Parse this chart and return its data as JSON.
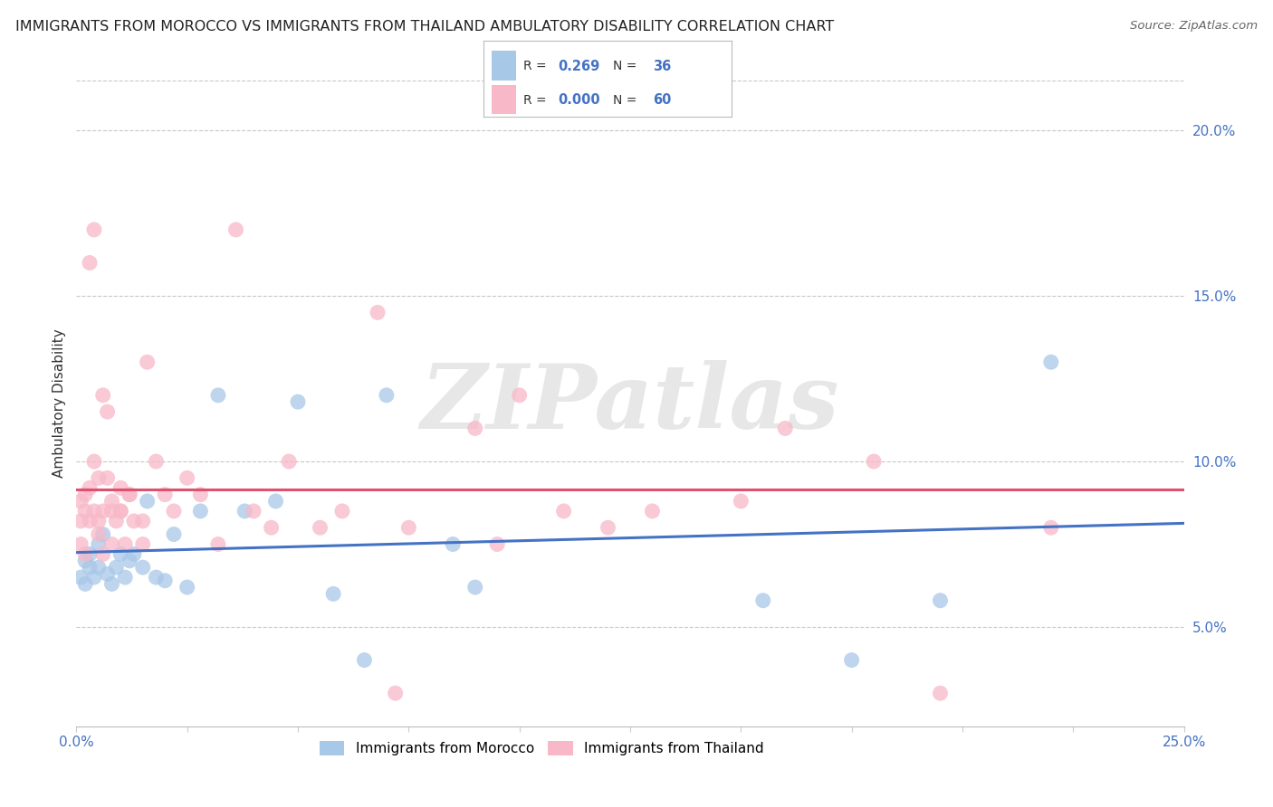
{
  "title": "IMMIGRANTS FROM MOROCCO VS IMMIGRANTS FROM THAILAND AMBULATORY DISABILITY CORRELATION CHART",
  "source": "Source: ZipAtlas.com",
  "ylabel": "Ambulatory Disability",
  "xlim": [
    0.0,
    0.25
  ],
  "ylim": [
    0.02,
    0.215
  ],
  "xtick_positions": [
    0.0,
    0.025,
    0.05,
    0.075,
    0.1,
    0.125,
    0.15,
    0.175,
    0.2,
    0.225,
    0.25
  ],
  "xtick_labels_show": {
    "0.0": "0.0%",
    "0.25": "25.0%"
  },
  "yticks_right": [
    0.05,
    0.1,
    0.15,
    0.2
  ],
  "morocco_color": "#a8c8e8",
  "morocco_edge_color": "#7aaad0",
  "morocco_line_color": "#4472c4",
  "thailand_color": "#f8b8c8",
  "thailand_edge_color": "#e888a0",
  "thailand_line_color": "#e05070",
  "morocco_R": 0.269,
  "morocco_N": 36,
  "thailand_R": 0.0,
  "thailand_N": 60,
  "watermark": "ZIPatlas",
  "background_color": "#ffffff",
  "grid_color": "#c8c8c8"
}
